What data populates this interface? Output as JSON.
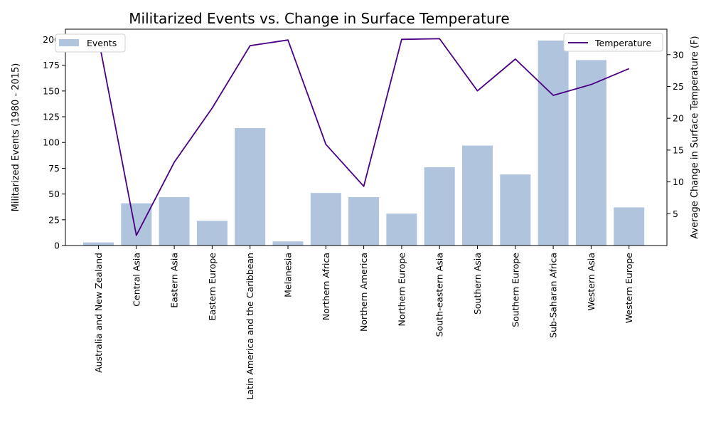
{
  "chart_data": {
    "type": "bar",
    "title": "Militarized Events vs. Change in Surface Temperature",
    "xlabel": "",
    "ylabel": "Militarized Events (1980 - 2015)",
    "y2label": "Average Change in Surface Temperature (F)",
    "categories": [
      "Australia and New Zealand",
      "Central Asia",
      "Eastern Asia",
      "Eastern Europe",
      "Latin America and the Caribbean",
      "Melanesia",
      "Northern Africa",
      "Northern America",
      "Northern Europe",
      "South-eastern Asia",
      "Southern Asia",
      "Southern Europe",
      "Sub-Saharan Africa",
      "Western Asia",
      "Western Europe"
    ],
    "series": [
      {
        "name": "Events",
        "type": "bar",
        "axis": "left",
        "color": "#b0c4de",
        "values": [
          3,
          41,
          47,
          24,
          114,
          4,
          51,
          47,
          31,
          76,
          97,
          69,
          199,
          180,
          37
        ]
      },
      {
        "name": "Temperature",
        "type": "line",
        "axis": "right",
        "color": "#4b0082",
        "values": [
          32.5,
          1.6,
          13.1,
          21.6,
          31.4,
          32.3,
          15.9,
          9.3,
          32.4,
          32.5,
          24.3,
          29.3,
          23.6,
          25.3,
          27.8
        ]
      }
    ],
    "ylim": [
      0,
      210
    ],
    "y2lim": [
      0,
      34
    ],
    "yticks": [
      0,
      25,
      50,
      75,
      100,
      125,
      150,
      175,
      200
    ],
    "y2ticks": [
      5,
      10,
      15,
      20,
      25,
      30
    ],
    "legend": [
      {
        "label": "Events",
        "placement": "top-left",
        "kind": "patch"
      },
      {
        "label": "Temperature",
        "placement": "top-right",
        "kind": "line"
      }
    ],
    "grid": false
  }
}
